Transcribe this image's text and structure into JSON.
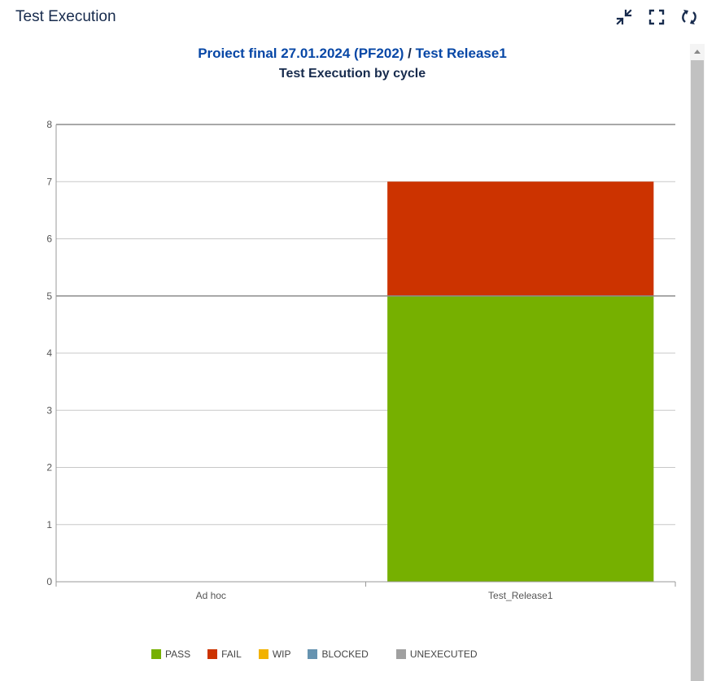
{
  "gadget": {
    "title": "Test Execution"
  },
  "header": {
    "project_link": "Proiect final 27.01.2024 (PF202)",
    "separator": " / ",
    "release_link": "Test Release1",
    "subtitle": "Test Execution by cycle"
  },
  "toolbar": {
    "minimize_icon": "minimize-icon",
    "fullscreen_icon": "fullscreen-icon",
    "refresh_icon": "refresh-icon"
  },
  "chart_data": {
    "type": "bar",
    "stacked": true,
    "categories": [
      "Ad hoc",
      "Test_Release1"
    ],
    "series": [
      {
        "name": "PASS",
        "color": "#76b000",
        "values": [
          0,
          5
        ]
      },
      {
        "name": "FAIL",
        "color": "#cc3300",
        "values": [
          0,
          2
        ]
      },
      {
        "name": "WIP",
        "color": "#f2b200",
        "values": [
          0,
          0
        ]
      },
      {
        "name": "BLOCKED",
        "color": "#6693b0",
        "values": [
          0,
          0
        ]
      },
      {
        "name": "UNEXECUTED",
        "color": "#a0a0a0",
        "values": [
          0,
          0
        ]
      }
    ],
    "ylim": [
      0,
      8
    ],
    "yticks": [
      "0",
      "1",
      "2",
      "3",
      "4",
      "5",
      "6",
      "7",
      "8"
    ],
    "grid": true,
    "legend": "bottom"
  }
}
